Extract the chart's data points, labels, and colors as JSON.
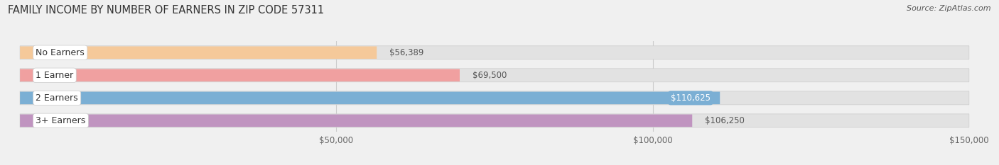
{
  "title": "FAMILY INCOME BY NUMBER OF EARNERS IN ZIP CODE 57311",
  "source": "Source: ZipAtlas.com",
  "categories": [
    "No Earners",
    "1 Earner",
    "2 Earners",
    "3+ Earners"
  ],
  "values": [
    56389,
    69500,
    110625,
    106250
  ],
  "bar_colors": [
    "#f5c99a",
    "#f0a0a0",
    "#7bafd4",
    "#c094c0"
  ],
  "bar_label_colors": [
    "#555555",
    "#555555",
    "#ffffff",
    "#555555"
  ],
  "label_inside": [
    false,
    false,
    true,
    false
  ],
  "xlim": [
    0,
    150000
  ],
  "xticks": [
    50000,
    100000,
    150000
  ],
  "xtick_labels": [
    "$50,000",
    "$100,000",
    "$150,000"
  ],
  "background_color": "#f0f0f0",
  "bar_background_color": "#e2e2e2",
  "title_fontsize": 10.5,
  "source_fontsize": 8,
  "bar_height": 0.52,
  "bar_label_fontsize": 8.5,
  "category_label_fontsize": 9
}
